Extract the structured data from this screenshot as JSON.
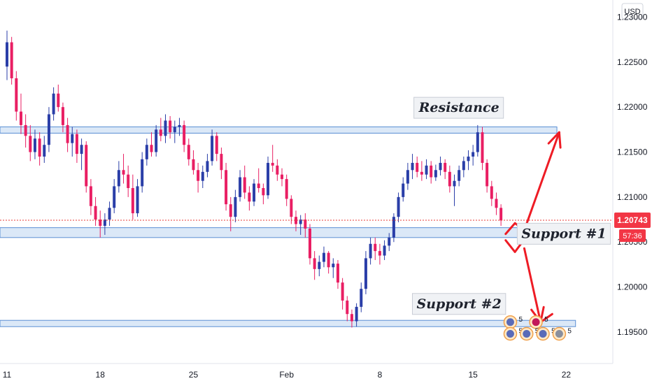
{
  "chart_data": {
    "type": "candlestick",
    "currency": "USD",
    "y_ticks": [
      "1.23000",
      "1.22500",
      "1.22000",
      "1.21500",
      "1.21000",
      "1.20500",
      "1.20000",
      "1.19500"
    ],
    "y_tick_values": [
      1.23,
      1.225,
      1.22,
      1.215,
      1.21,
      1.205,
      1.2,
      1.195
    ],
    "x_ticks": [
      "11",
      "18",
      "25",
      "Feb",
      "8",
      "15",
      "22"
    ],
    "x_tick_index": [
      0,
      20,
      40,
      60,
      80,
      100,
      120
    ],
    "ylim": [
      1.1915,
      1.2319
    ],
    "xlim_index": [
      -1.5,
      130
    ],
    "last_price": "1.20743",
    "last_price_value": 1.20743,
    "countdown": "57:36",
    "colors": {
      "up": "#2a3ea8",
      "down": "#e91e63",
      "zone_fill": "#dbe8f7",
      "zone_stroke": "#5b8fd4",
      "arrow": "#ee1c25",
      "price_tag": "#f23645",
      "price_line": "#e53935"
    },
    "zones": [
      {
        "name": "Resistance",
        "low": 1.2171,
        "high": 1.2178,
        "x_start": -1.5,
        "x_end": 118
      },
      {
        "name": "Support #1",
        "low": 1.2055,
        "high": 1.2066,
        "x_start": -1.5,
        "x_end": 111
      },
      {
        "name": "Support #2",
        "low": 1.1956,
        "high": 1.1963,
        "x_start": -1.5,
        "x_end": 122
      }
    ],
    "annotations": [
      {
        "text": "Resistance",
        "x": 97,
        "y": 1.22
      },
      {
        "text": "Support #1",
        "x": 119.5,
        "y": 1.206
      },
      {
        "text": "Support #2",
        "x": 97,
        "y": 1.1982
      }
    ],
    "arrow_paths": [
      [
        [
          107,
          1.2059
        ],
        [
          109,
          1.2071
        ],
        [
          111,
          1.2063
        ]
      ],
      [
        [
          107,
          1.2052
        ],
        [
          109,
          1.2039
        ],
        [
          111,
          1.2053
        ]
      ],
      [
        [
          111,
          1.2063
        ],
        [
          118.5,
          1.2172
        ]
      ],
      [
        [
          111,
          1.2043
        ],
        [
          114.5,
          1.1961
        ],
        [
          117,
          1.197
        ]
      ]
    ],
    "candles": [
      {
        "o": 1.2245,
        "h": 1.2285,
        "l": 1.223,
        "c": 1.2272
      },
      {
        "o": 1.2272,
        "h": 1.2278,
        "l": 1.2225,
        "c": 1.2232
      },
      {
        "o": 1.2232,
        "h": 1.224,
        "l": 1.2185,
        "c": 1.2195
      },
      {
        "o": 1.2195,
        "h": 1.2215,
        "l": 1.217,
        "c": 1.218
      },
      {
        "o": 1.218,
        "h": 1.2192,
        "l": 1.2155,
        "c": 1.2168
      },
      {
        "o": 1.2168,
        "h": 1.218,
        "l": 1.214,
        "c": 1.215
      },
      {
        "o": 1.215,
        "h": 1.2175,
        "l": 1.2142,
        "c": 1.2165
      },
      {
        "o": 1.2165,
        "h": 1.2172,
        "l": 1.2135,
        "c": 1.2145
      },
      {
        "o": 1.2145,
        "h": 1.2168,
        "l": 1.2138,
        "c": 1.2158
      },
      {
        "o": 1.2158,
        "h": 1.22,
        "l": 1.215,
        "c": 1.2192
      },
      {
        "o": 1.2192,
        "h": 1.2222,
        "l": 1.2185,
        "c": 1.2215
      },
      {
        "o": 1.2215,
        "h": 1.2225,
        "l": 1.2195,
        "c": 1.22
      },
      {
        "o": 1.22,
        "h": 1.2205,
        "l": 1.2172,
        "c": 1.218
      },
      {
        "o": 1.218,
        "h": 1.2188,
        "l": 1.215,
        "c": 1.216
      },
      {
        "o": 1.216,
        "h": 1.2178,
        "l": 1.2145,
        "c": 1.217
      },
      {
        "o": 1.217,
        "h": 1.2175,
        "l": 1.2138,
        "c": 1.2148
      },
      {
        "o": 1.2148,
        "h": 1.2165,
        "l": 1.213,
        "c": 1.2158
      },
      {
        "o": 1.2158,
        "h": 1.2162,
        "l": 1.2105,
        "c": 1.2112
      },
      {
        "o": 1.2112,
        "h": 1.212,
        "l": 1.208,
        "c": 1.209
      },
      {
        "o": 1.209,
        "h": 1.21,
        "l": 1.2068,
        "c": 1.2075
      },
      {
        "o": 1.2075,
        "h": 1.2085,
        "l": 1.2055,
        "c": 1.2068
      },
      {
        "o": 1.2068,
        "h": 1.2082,
        "l": 1.2058,
        "c": 1.2075
      },
      {
        "o": 1.2075,
        "h": 1.2095,
        "l": 1.2068,
        "c": 1.2088
      },
      {
        "o": 1.2088,
        "h": 1.212,
        "l": 1.2082,
        "c": 1.2112
      },
      {
        "o": 1.2112,
        "h": 1.214,
        "l": 1.2105,
        "c": 1.213
      },
      {
        "o": 1.213,
        "h": 1.2148,
        "l": 1.2115,
        "c": 1.2125
      },
      {
        "o": 1.2125,
        "h": 1.2135,
        "l": 1.21,
        "c": 1.211
      },
      {
        "o": 1.211,
        "h": 1.2125,
        "l": 1.2075,
        "c": 1.2082
      },
      {
        "o": 1.2082,
        "h": 1.212,
        "l": 1.2078,
        "c": 1.2112
      },
      {
        "o": 1.2112,
        "h": 1.215,
        "l": 1.2105,
        "c": 1.2142
      },
      {
        "o": 1.2142,
        "h": 1.2165,
        "l": 1.2135,
        "c": 1.2158
      },
      {
        "o": 1.2158,
        "h": 1.2172,
        "l": 1.2145,
        "c": 1.215
      },
      {
        "o": 1.215,
        "h": 1.218,
        "l": 1.2145,
        "c": 1.2175
      },
      {
        "o": 1.2175,
        "h": 1.2188,
        "l": 1.2162,
        "c": 1.2168
      },
      {
        "o": 1.2168,
        "h": 1.2192,
        "l": 1.216,
        "c": 1.2185
      },
      {
        "o": 1.2185,
        "h": 1.219,
        "l": 1.2165,
        "c": 1.2172
      },
      {
        "o": 1.2172,
        "h": 1.2185,
        "l": 1.216,
        "c": 1.2178
      },
      {
        "o": 1.2178,
        "h": 1.2188,
        "l": 1.2168,
        "c": 1.218
      },
      {
        "o": 1.218,
        "h": 1.2185,
        "l": 1.215,
        "c": 1.2158
      },
      {
        "o": 1.2158,
        "h": 1.2165,
        "l": 1.2135,
        "c": 1.2142
      },
      {
        "o": 1.2142,
        "h": 1.2152,
        "l": 1.2125,
        "c": 1.213
      },
      {
        "o": 1.213,
        "h": 1.2138,
        "l": 1.2105,
        "c": 1.2118
      },
      {
        "o": 1.2118,
        "h": 1.2135,
        "l": 1.211,
        "c": 1.2128
      },
      {
        "o": 1.2128,
        "h": 1.2148,
        "l": 1.2122,
        "c": 1.214
      },
      {
        "o": 1.214,
        "h": 1.2175,
        "l": 1.2135,
        "c": 1.2168
      },
      {
        "o": 1.2168,
        "h": 1.2172,
        "l": 1.214,
        "c": 1.2148
      },
      {
        "o": 1.2148,
        "h": 1.2155,
        "l": 1.212,
        "c": 1.213
      },
      {
        "o": 1.213,
        "h": 1.2138,
        "l": 1.2085,
        "c": 1.2092
      },
      {
        "o": 1.2092,
        "h": 1.21,
        "l": 1.2062,
        "c": 1.2078
      },
      {
        "o": 1.2078,
        "h": 1.2108,
        "l": 1.2072,
        "c": 1.21
      },
      {
        "o": 1.21,
        "h": 1.213,
        "l": 1.2095,
        "c": 1.2122
      },
      {
        "o": 1.2122,
        "h": 1.2135,
        "l": 1.2098,
        "c": 1.2105
      },
      {
        "o": 1.2105,
        "h": 1.2112,
        "l": 1.2085,
        "c": 1.2095
      },
      {
        "o": 1.2095,
        "h": 1.212,
        "l": 1.209,
        "c": 1.2115
      },
      {
        "o": 1.2115,
        "h": 1.2132,
        "l": 1.2105,
        "c": 1.211
      },
      {
        "o": 1.211,
        "h": 1.2115,
        "l": 1.2092,
        "c": 1.2102
      },
      {
        "o": 1.2102,
        "h": 1.2145,
        "l": 1.2098,
        "c": 1.2138
      },
      {
        "o": 1.2138,
        "h": 1.2158,
        "l": 1.2128,
        "c": 1.2135
      },
      {
        "o": 1.2135,
        "h": 1.2142,
        "l": 1.2118,
        "c": 1.2125
      },
      {
        "o": 1.2125,
        "h": 1.2132,
        "l": 1.2112,
        "c": 1.212
      },
      {
        "o": 1.212,
        "h": 1.2125,
        "l": 1.209,
        "c": 1.2098
      },
      {
        "o": 1.2098,
        "h": 1.2102,
        "l": 1.207,
        "c": 1.2078
      },
      {
        "o": 1.2078,
        "h": 1.2085,
        "l": 1.2062,
        "c": 1.207
      },
      {
        "o": 1.207,
        "h": 1.208,
        "l": 1.2058,
        "c": 1.2075
      },
      {
        "o": 1.2075,
        "h": 1.2082,
        "l": 1.2055,
        "c": 1.2065
      },
      {
        "o": 1.2065,
        "h": 1.207,
        "l": 1.2025,
        "c": 1.2032
      },
      {
        "o": 1.2032,
        "h": 1.204,
        "l": 1.2008,
        "c": 1.202
      },
      {
        "o": 1.202,
        "h": 1.2035,
        "l": 1.2012,
        "c": 1.2028
      },
      {
        "o": 1.2028,
        "h": 1.2045,
        "l": 1.2022,
        "c": 1.2038
      },
      {
        "o": 1.2038,
        "h": 1.204,
        "l": 1.2015,
        "c": 1.2022
      },
      {
        "o": 1.2022,
        "h": 1.2032,
        "l": 1.201,
        "c": 1.2026
      },
      {
        "o": 1.2026,
        "h": 1.203,
        "l": 1.1998,
        "c": 1.2005
      },
      {
        "o": 1.2005,
        "h": 1.201,
        "l": 1.1975,
        "c": 1.1985
      },
      {
        "o": 1.1985,
        "h": 1.199,
        "l": 1.1962,
        "c": 1.197
      },
      {
        "o": 1.197,
        "h": 1.1975,
        "l": 1.1955,
        "c": 1.1962
      },
      {
        "o": 1.1962,
        "h": 1.1982,
        "l": 1.1956,
        "c": 1.1978
      },
      {
        "o": 1.1978,
        "h": 1.2005,
        "l": 1.1972,
        "c": 1.1998
      },
      {
        "o": 1.1998,
        "h": 1.204,
        "l": 1.1992,
        "c": 1.2032
      },
      {
        "o": 1.2032,
        "h": 1.2055,
        "l": 1.2025,
        "c": 1.2048
      },
      {
        "o": 1.2048,
        "h": 1.2055,
        "l": 1.203,
        "c": 1.204
      },
      {
        "o": 1.204,
        "h": 1.2048,
        "l": 1.2025,
        "c": 1.2035
      },
      {
        "o": 1.2035,
        "h": 1.2052,
        "l": 1.203,
        "c": 1.2046
      },
      {
        "o": 1.2046,
        "h": 1.206,
        "l": 1.204,
        "c": 1.2055
      },
      {
        "o": 1.2055,
        "h": 1.2082,
        "l": 1.205,
        "c": 1.2078
      },
      {
        "o": 1.2078,
        "h": 1.2105,
        "l": 1.2072,
        "c": 1.21
      },
      {
        "o": 1.21,
        "h": 1.2122,
        "l": 1.2095,
        "c": 1.2115
      },
      {
        "o": 1.2115,
        "h": 1.2138,
        "l": 1.2108,
        "c": 1.213
      },
      {
        "o": 1.213,
        "h": 1.2148,
        "l": 1.212,
        "c": 1.2138
      },
      {
        "o": 1.2138,
        "h": 1.2145,
        "l": 1.2122,
        "c": 1.2128
      },
      {
        "o": 1.2128,
        "h": 1.214,
        "l": 1.2118,
        "c": 1.2125
      },
      {
        "o": 1.2125,
        "h": 1.2142,
        "l": 1.212,
        "c": 1.2135
      },
      {
        "o": 1.2135,
        "h": 1.214,
        "l": 1.2115,
        "c": 1.2122
      },
      {
        "o": 1.2122,
        "h": 1.2136,
        "l": 1.2118,
        "c": 1.213
      },
      {
        "o": 1.213,
        "h": 1.2145,
        "l": 1.2124,
        "c": 1.2138
      },
      {
        "o": 1.2138,
        "h": 1.2142,
        "l": 1.212,
        "c": 1.2128
      },
      {
        "o": 1.2128,
        "h": 1.2135,
        "l": 1.2105,
        "c": 1.2112
      },
      {
        "o": 1.2112,
        "h": 1.2125,
        "l": 1.209,
        "c": 1.2118
      },
      {
        "o": 1.2118,
        "h": 1.2135,
        "l": 1.2112,
        "c": 1.213
      },
      {
        "o": 1.213,
        "h": 1.2145,
        "l": 1.2122,
        "c": 1.214
      },
      {
        "o": 1.214,
        "h": 1.2152,
        "l": 1.213,
        "c": 1.2145
      },
      {
        "o": 1.2145,
        "h": 1.2158,
        "l": 1.2135,
        "c": 1.215
      },
      {
        "o": 1.215,
        "h": 1.218,
        "l": 1.2145,
        "c": 1.2172
      },
      {
        "o": 1.2172,
        "h": 1.2178,
        "l": 1.213,
        "c": 1.2138
      },
      {
        "o": 1.2138,
        "h": 1.2142,
        "l": 1.2105,
        "c": 1.2112
      },
      {
        "o": 1.2112,
        "h": 1.2118,
        "l": 1.209,
        "c": 1.2098
      },
      {
        "o": 1.2098,
        "h": 1.2105,
        "l": 1.208,
        "c": 1.2088
      },
      {
        "o": 1.2088,
        "h": 1.2092,
        "l": 1.2068,
        "c": 1.2074
      }
    ]
  },
  "event_badges": [
    {
      "label": "5",
      "x": 108,
      "y": 1.1961,
      "color": "#5a6bb8"
    },
    {
      "label": "5",
      "x": 113.5,
      "y": 1.1961,
      "color": "#c2185b"
    },
    {
      "label": "5",
      "x": 108,
      "y": 1.1948,
      "color": "#5a6bb8"
    },
    {
      "label": "5",
      "x": 111.5,
      "y": 1.1948,
      "color": "#5a6bb8"
    },
    {
      "label": "5",
      "x": 115,
      "y": 1.1948,
      "color": "#5a6bb8"
    },
    {
      "label": "5",
      "x": 118.5,
      "y": 1.1948,
      "color": "#8a8f9d"
    }
  ]
}
